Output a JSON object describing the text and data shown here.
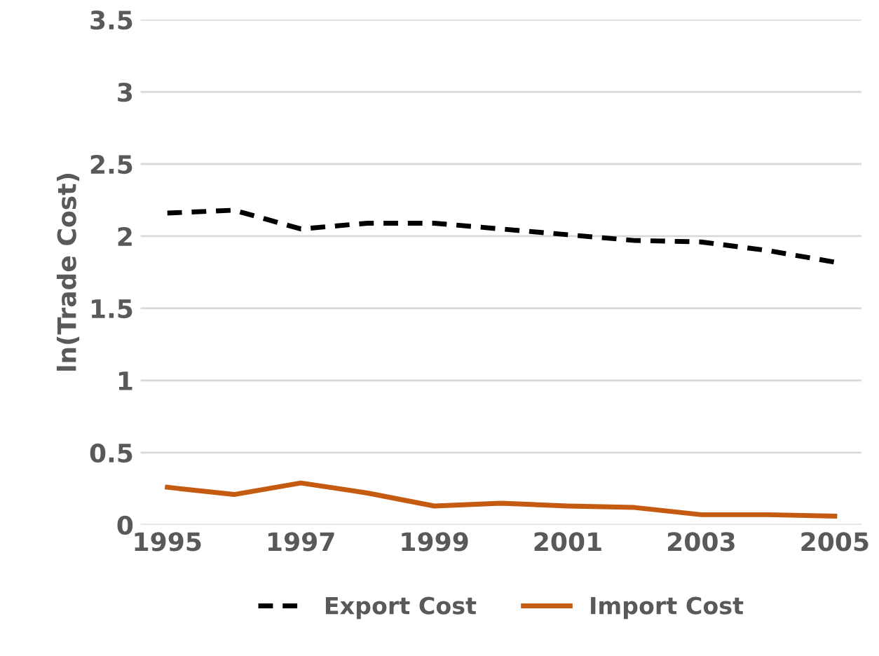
{
  "chart_data": {
    "type": "line",
    "ylabel": "ln(Trade Cost)",
    "categories": [
      "1995",
      null,
      "1997",
      null,
      "1999",
      null,
      "2001",
      null,
      "2003",
      null,
      "2005"
    ],
    "series": [
      {
        "name": "Export Cost",
        "color": "#000000",
        "line_style": "dashed",
        "values": [
          2.16,
          2.18,
          2.05,
          2.09,
          2.09,
          2.05,
          2.01,
          1.97,
          1.96,
          1.9,
          1.82
        ]
      },
      {
        "name": "Import Cost",
        "color": "#c55a11",
        "line_style": "solid",
        "values": [
          0.26,
          0.21,
          0.29,
          0.22,
          0.13,
          0.15,
          0.13,
          0.12,
          0.07,
          0.07,
          0.06
        ]
      }
    ],
    "ylim": [
      0,
      3.5
    ],
    "yticks": [
      0,
      0.5,
      1,
      1.5,
      2,
      2.5,
      3,
      3.5
    ],
    "grid": "y",
    "legend": "bottom",
    "marker": "none"
  }
}
